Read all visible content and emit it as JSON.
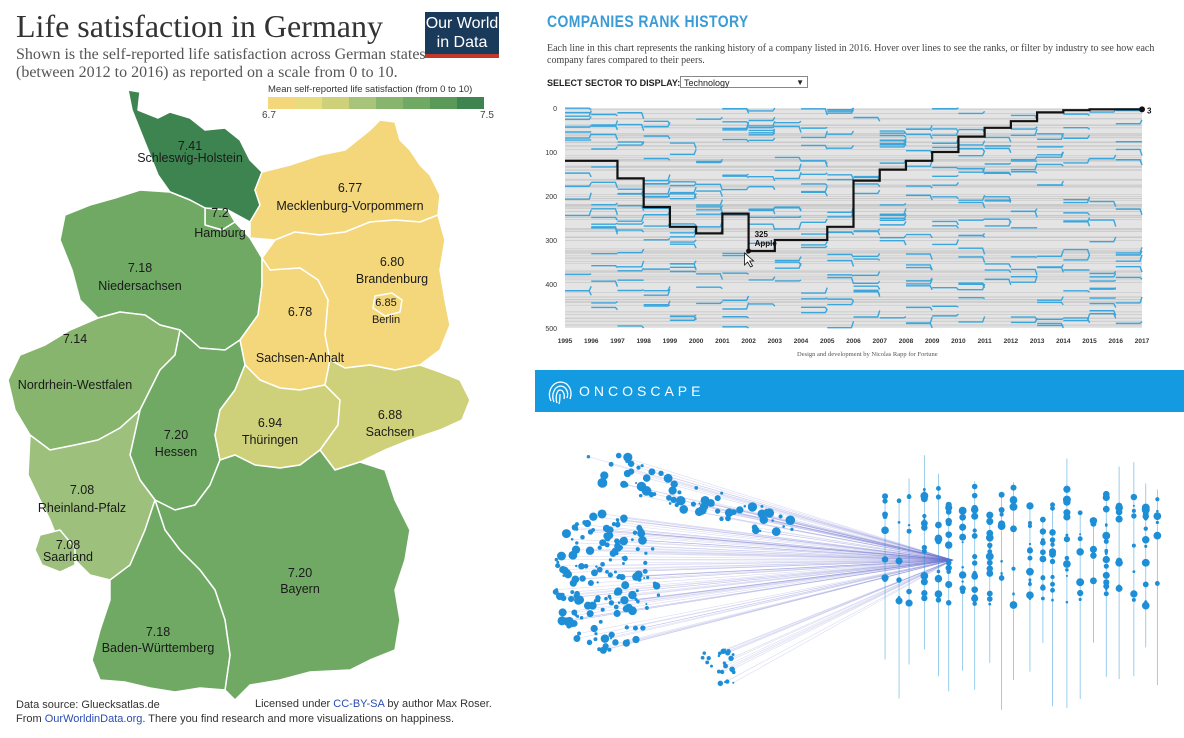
{
  "map": {
    "title": "Life satisfaction in Germany",
    "subtitle": "Shown is the self-reported life satisfaction across German states (between 2012 to 2016) as reported on a scale from 0 to 10.",
    "logo_line1": "Our World",
    "logo_line2": "in Data",
    "legend_title": "Mean self-reported life satisfaction (from 0 to 10)",
    "legend_min": "6.7",
    "legend_max": "7.5",
    "legend_colors": [
      "#f3d77a",
      "#e9dc7e",
      "#cfd17a",
      "#a8c47a",
      "#87b56e",
      "#6fa964",
      "#5a9a58",
      "#3e8450"
    ],
    "footer_source": "Data source: Gluecksatlas.de",
    "footer_license_pre": "Licensed under",
    "footer_license_link": "CC-BY-SA",
    "footer_license_post": "by author Max Roser.",
    "footer_from": "From",
    "footer_site": "OurWorldinData.org",
    "footer_more": ". There you find research and more visualizations on happiness.",
    "states": [
      {
        "name": "Schleswig-Holstein",
        "value": "7.41",
        "color": "#3e8450"
      },
      {
        "name": "Hamburg",
        "value": "7.2",
        "color": "#6fa964"
      },
      {
        "name": "Mecklenburg-Vorpommern",
        "value": "6.77",
        "color": "#f3d77a"
      },
      {
        "name": "Niedersachsen",
        "value": "7.18",
        "color": "#6fa964"
      },
      {
        "name": "Brandenburg",
        "value": "6.80",
        "color": "#f3d77a"
      },
      {
        "name": "Berlin",
        "value": "6.85",
        "color": "#f3d77a"
      },
      {
        "name": "Sachsen-Anhalt",
        "value": "6.78",
        "color": "#f3d77a"
      },
      {
        "name": "Nordrhein-Westfalen",
        "value": "7.14",
        "color": "#87b56e"
      },
      {
        "name": "Hessen",
        "value": "7.20",
        "color": "#6fa964"
      },
      {
        "name": "Thüringen",
        "value": "6.94",
        "color": "#cfd17a"
      },
      {
        "name": "Sachsen",
        "value": "6.88",
        "color": "#cfd17a"
      },
      {
        "name": "Rheinland-Pfalz",
        "value": "7.08",
        "color": "#9dc07c"
      },
      {
        "name": "Saarland",
        "value": "7.08",
        "color": "#9dc07c"
      },
      {
        "name": "Bayern",
        "value": "7.20",
        "color": "#6fa964"
      },
      {
        "name": "Baden-Württemberg",
        "value": "7.18",
        "color": "#6fa964"
      }
    ]
  },
  "rank": {
    "title": "COMPANIES RANK HISTORY",
    "description": "Each line in this chart represents the ranking history of a company listed in 2016. Hover over lines to see the ranks, or filter by industry to see how each company fares compared to their peers.",
    "sector_label": "SELECT SECTOR TO DISPLAY:",
    "sector_value": "Technology",
    "credit": "Design and development by Nicolas Rapp for Fortune",
    "tooltip_rank": "325",
    "tooltip_company": "Apple",
    "end_label": "3",
    "accent_color": "#3aa6dc"
  },
  "chart_data": {
    "type": "line",
    "x": [
      1995,
      1996,
      1997,
      1998,
      1999,
      2000,
      2001,
      2002,
      2003,
      2004,
      2005,
      2006,
      2007,
      2008,
      2009,
      2010,
      2011,
      2012,
      2013,
      2014,
      2015,
      2016,
      2017
    ],
    "y_ticks": [
      0,
      100,
      200,
      300,
      400,
      500
    ],
    "ylim": [
      500,
      0
    ],
    "series": [
      {
        "name": "Apple",
        "values": [
          120,
          120,
          160,
          225,
          270,
          285,
          240,
          325,
          300,
          300,
          270,
          165,
          140,
          120,
          100,
          65,
          45,
          30,
          10,
          5,
          3,
          3,
          3
        ]
      }
    ]
  },
  "onco": {
    "name": "ONCOSCAPE",
    "brand_color": "#139ae0",
    "dot_color": "#1e8fd6"
  }
}
